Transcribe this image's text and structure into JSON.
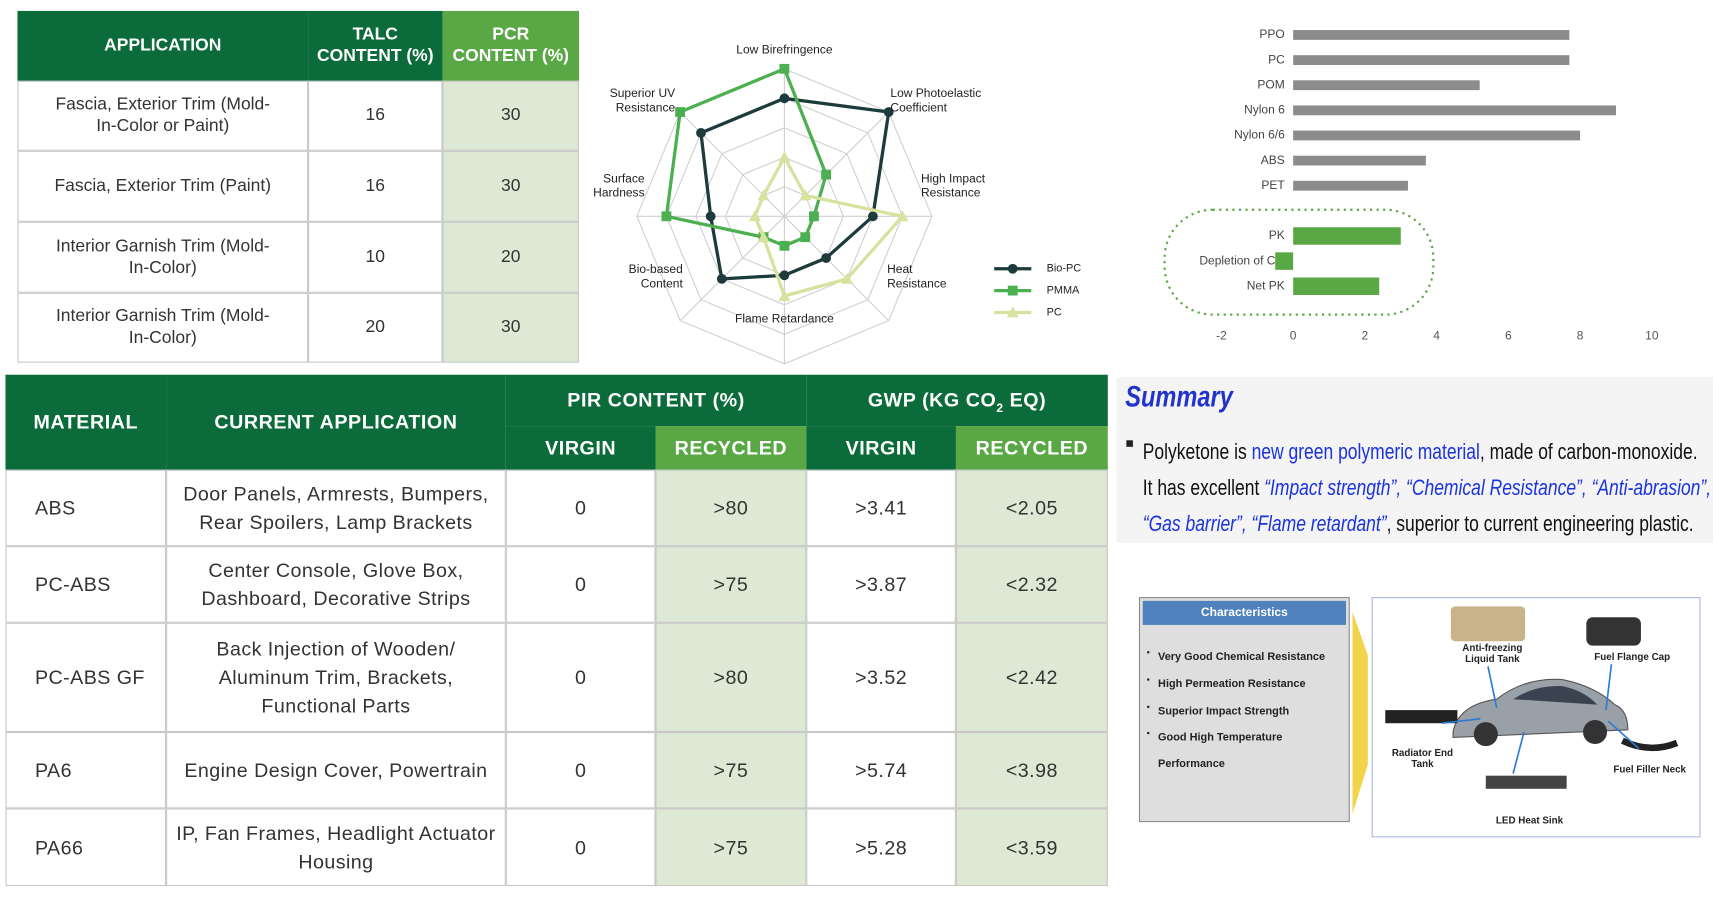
{
  "table1": {
    "headers": [
      "APPLICATION",
      "TALC CONTENT (%)",
      "PCR CONTENT (%)"
    ],
    "rows": [
      [
        "Fascia, Exterior Trim (Mold-In-Color or Paint)",
        16,
        30
      ],
      [
        "Fascia, Exterior Trim (Paint)",
        16,
        30
      ],
      [
        "Interior Garnish Trim (Mold-In-Color)",
        10,
        20
      ],
      [
        "Interior Garnish Trim (Mold-In-Color)",
        20,
        30
      ]
    ]
  },
  "chart_data": [
    {
      "type": "radar",
      "axes": [
        "Low Birefringence",
        "Low Photoelastic Coefficient",
        "High Impact Resistance",
        "Heat Resistance",
        "Flame Retardance",
        "Bio-based Content",
        "Surface Hardness",
        "Superior UV Resistance"
      ],
      "rlim": [
        0,
        5
      ],
      "series": [
        {
          "name": "Bio-PC",
          "color": "#1d3b3c",
          "marker": "circle",
          "values": [
            4,
            5,
            3,
            2,
            2,
            3,
            2.5,
            4
          ]
        },
        {
          "name": "PMMA",
          "color": "#4caf50",
          "marker": "square",
          "values": [
            5,
            2,
            1,
            1,
            1,
            1,
            4,
            5
          ]
        },
        {
          "name": "PC",
          "color": "#d6e29e",
          "marker": "triangle",
          "values": [
            2,
            1,
            4,
            3,
            2.7,
            1,
            1,
            1
          ]
        }
      ]
    },
    {
      "type": "hbar",
      "categories": [
        "PPO",
        "PC",
        "POM",
        "Nylon 6",
        "Nylon 6/6",
        "ABS",
        "PET",
        null,
        "PK",
        "Depletion of CO",
        "Net PK"
      ],
      "values": [
        7.7,
        7.7,
        5.2,
        9.0,
        8.0,
        3.7,
        3.2,
        null,
        3.0,
        -0.5,
        2.4
      ],
      "colors": [
        "#8c8c8c",
        "#8c8c8c",
        "#8c8c8c",
        "#8c8c8c",
        "#8c8c8c",
        "#8c8c8c",
        "#8c8c8c",
        null,
        "#5aa845",
        "#5aa845",
        "#5aa845"
      ],
      "xlim": [
        -2,
        10
      ],
      "xticks": [
        -2,
        0,
        2,
        4,
        6,
        8,
        10
      ]
    }
  ],
  "table2": {
    "headers": {
      "material": "MATERIAL",
      "application": "CURRENT APPLICATION",
      "pir": "PIR CONTENT (%)",
      "gwp": {
        "text": "GWP (KG CO",
        "sub": "2",
        "tail": " EQ)"
      }
    },
    "subheaders": [
      "VIRGIN",
      "RECYCLED",
      "VIRGIN",
      "RECYCLED"
    ],
    "rows": [
      [
        "ABS",
        "Door Panels, Armrests, Bumpers, Rear Spoilers, Lamp Brackets",
        0,
        ">80",
        ">3.41",
        "<2.05"
      ],
      [
        "PC-ABS",
        "Center Console, Glove Box, Dashboard, Decorative Strips",
        0,
        ">75",
        ">3.87",
        "<2.32"
      ],
      [
        "PC-ABS GF",
        "Back Injection of Wooden/ Aluminum Trim, Brackets, Functional Parts",
        0,
        ">80",
        ">3.52",
        "<2.42"
      ],
      [
        "PA6",
        "Engine Design Cover, Powertrain",
        0,
        ">75",
        ">5.74",
        "<3.98"
      ],
      [
        "PA66",
        "IP, Fan Frames, Headlight Actuator Housing",
        0,
        ">75",
        ">5.28",
        "<3.59"
      ]
    ]
  },
  "summary": {
    "title": "Summary",
    "lines": [
      [
        {
          "text": "Polyketone is ",
          "style": "plain"
        },
        {
          "text": "new green polymeric material",
          "style": "blue"
        },
        {
          "text": ", made of carbon-monoxide.",
          "style": "plain"
        }
      ],
      [
        {
          "text": "It has excellent ",
          "style": "plain"
        },
        {
          "text": "“Impact strength”, “Chemical Resistance”, “Anti-abrasion”,",
          "style": "italic-blue"
        }
      ],
      [
        {
          "text": "“Gas barrier”, “Flame retardant”",
          "style": "italic-blue"
        },
        {
          "text": ", superior to current engineering plastic.",
          "style": "plain"
        }
      ]
    ]
  },
  "characteristics": {
    "title": "Characteristics",
    "items": [
      "Very Good Chemical Resistance",
      "High Permeation Resistance",
      "Superior Impact Strength",
      "Good High Temperature Performance"
    ],
    "parts": [
      "Anti-freezing Liquid Tank",
      "Fuel Flange Cap",
      "Radiator End Tank",
      "Fuel Filler Neck",
      "LED Heat Sink"
    ]
  }
}
